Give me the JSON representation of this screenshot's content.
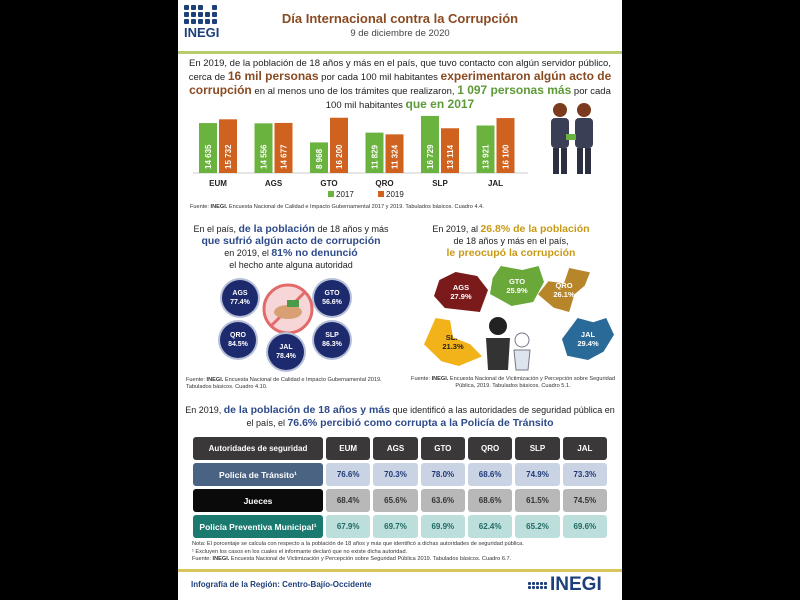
{
  "header": {
    "logo_text": "INEGI",
    "title": "Día Internacional contra la Corrupción",
    "date": "9 de diciembre de 2020"
  },
  "intro": {
    "p1": "En 2019, de la población de 18 años y más en el país, que tuvo contacto con algún servidor público, cerca de ",
    "h1": "16 mil personas",
    "p2": " por cada 100 mil habitantes ",
    "h2": "experimentaron algún acto de corrupción",
    "p3": " en al menos uno de los trámites que realizaron, ",
    "h3": "1 097 personas más",
    "p4": " por cada 100 mil habitantes ",
    "h4": "que en 2017"
  },
  "chart_data": {
    "type": "bar",
    "categories": [
      "EUM",
      "AGS",
      "GTO",
      "QRO",
      "SLP",
      "JAL"
    ],
    "series": [
      {
        "name": "2017",
        "values": [
          14635,
          14556,
          8968,
          11829,
          16729,
          13921
        ],
        "labels": [
          "14 635",
          "14 556",
          "8 968",
          "11 829",
          "16 729",
          "13 921"
        ],
        "color": "#6bb33f"
      },
      {
        "name": "2019",
        "values": [
          15732,
          14677,
          16200,
          11324,
          13114,
          16100
        ],
        "labels": [
          "15 732",
          "14 677",
          "16 200",
          "11 324",
          "13 114",
          "16 100"
        ],
        "color": "#d0621f"
      }
    ],
    "ylim": [
      0,
      17000
    ],
    "title": "",
    "xlabel": "",
    "ylabel": "",
    "legend": "bottom"
  },
  "chart_source": {
    "label": "Fuente: ",
    "org": "INEGI.",
    "text": " Encuesta Nacional de Calidad e Impacto Gubernamental 2017 y 2019. Tabulados básicos. Cuadro 4.4."
  },
  "left": {
    "t1": "En el país, ",
    "h1": "de la población",
    "t2": " de 18 años y más ",
    "h2": "que sufrió algún acto de corrupción",
    "t3": " en 2019, el ",
    "h3": "81% no denunció",
    "t4": "el hecho ante alguna autoridad",
    "states": [
      {
        "name": "AGS",
        "value": "77.4%"
      },
      {
        "name": "GTO",
        "value": "56.6%"
      },
      {
        "name": "QRO",
        "value": "84.5%"
      },
      {
        "name": "JAL",
        "value": "78.4%"
      },
      {
        "name": "SLP",
        "value": "86.3%"
      }
    ],
    "source_label": "Fuente: ",
    "source_org": "INEGI.",
    "source": " Encuesta Nacional de Calidad e Impacto Gubernamental 2019. Tabulados básicos. Cuadro 4.10."
  },
  "right": {
    "t1": "En 2019, al ",
    "h1": "26.8% de la población",
    "t2": "de 18 años y más en el país,",
    "h2": "le preocupó la corrupción",
    "states": [
      {
        "name": "AGS",
        "value": "27.9%",
        "color": "#7b1a1a"
      },
      {
        "name": "GTO",
        "value": "25.9%",
        "color": "#6aa83a"
      },
      {
        "name": "QRO",
        "value": "26.1%",
        "color": "#b8862a"
      },
      {
        "name": "SLP",
        "value": "21.3%",
        "color": "#f2b21a"
      },
      {
        "name": "JAL",
        "value": "29.4%",
        "color": "#2a6a99"
      }
    ],
    "source_label": "Fuente: ",
    "source_org": "INEGI.",
    "source": " Encuesta Nacional de Victimización y Percepción sobre Seguridad Pública, 2019. Tabulados básicos. Cuadro 5.1."
  },
  "table_intro": {
    "t1": "En 2019, ",
    "h1": "de la población de 18 años y más",
    "t2": " que identificó a las autoridades de seguridad pública en el país, el ",
    "h2": "76.6% percibió como corrupta a la Policía de Tránsito"
  },
  "table": {
    "headers": [
      "Autoridades de seguridad",
      "EUM",
      "AGS",
      "GTO",
      "QRO",
      "SLP",
      "JAL"
    ],
    "rows": [
      {
        "label": "Policía de Tránsito¹",
        "values": [
          "76.6%",
          "70.3%",
          "78.0%",
          "68.6%",
          "74.9%",
          "73.3%"
        ]
      },
      {
        "label": "Jueces",
        "values": [
          "68.4%",
          "65.6%",
          "63.6%",
          "68.6%",
          "61.5%",
          "74.5%"
        ]
      },
      {
        "label": "Policía Preventiva Municipal¹",
        "values": [
          "67.9%",
          "69.7%",
          "69.9%",
          "62.4%",
          "65.2%",
          "69.6%"
        ]
      }
    ]
  },
  "notes": {
    "n1": "Nota: El porcentaje se calcula con respecto a la población de 18 años y más que identificó a dichas autoridades de seguridad pública.",
    "n2": "¹ Excluyen los casos en los cuales el informante declaró que no existe dicha autoridad.",
    "src_label": "Fuente: ",
    "src_org": "INEGI.",
    "src": " Encuesta Nacional de Victimización y Percepción sobre Seguridad Pública 2019. Tabulados básicos. Cuadro 6.7."
  },
  "footer": {
    "region": "Infografía de la Región: Centro-Bajío-Occidente",
    "logo_text": "INEGI"
  }
}
